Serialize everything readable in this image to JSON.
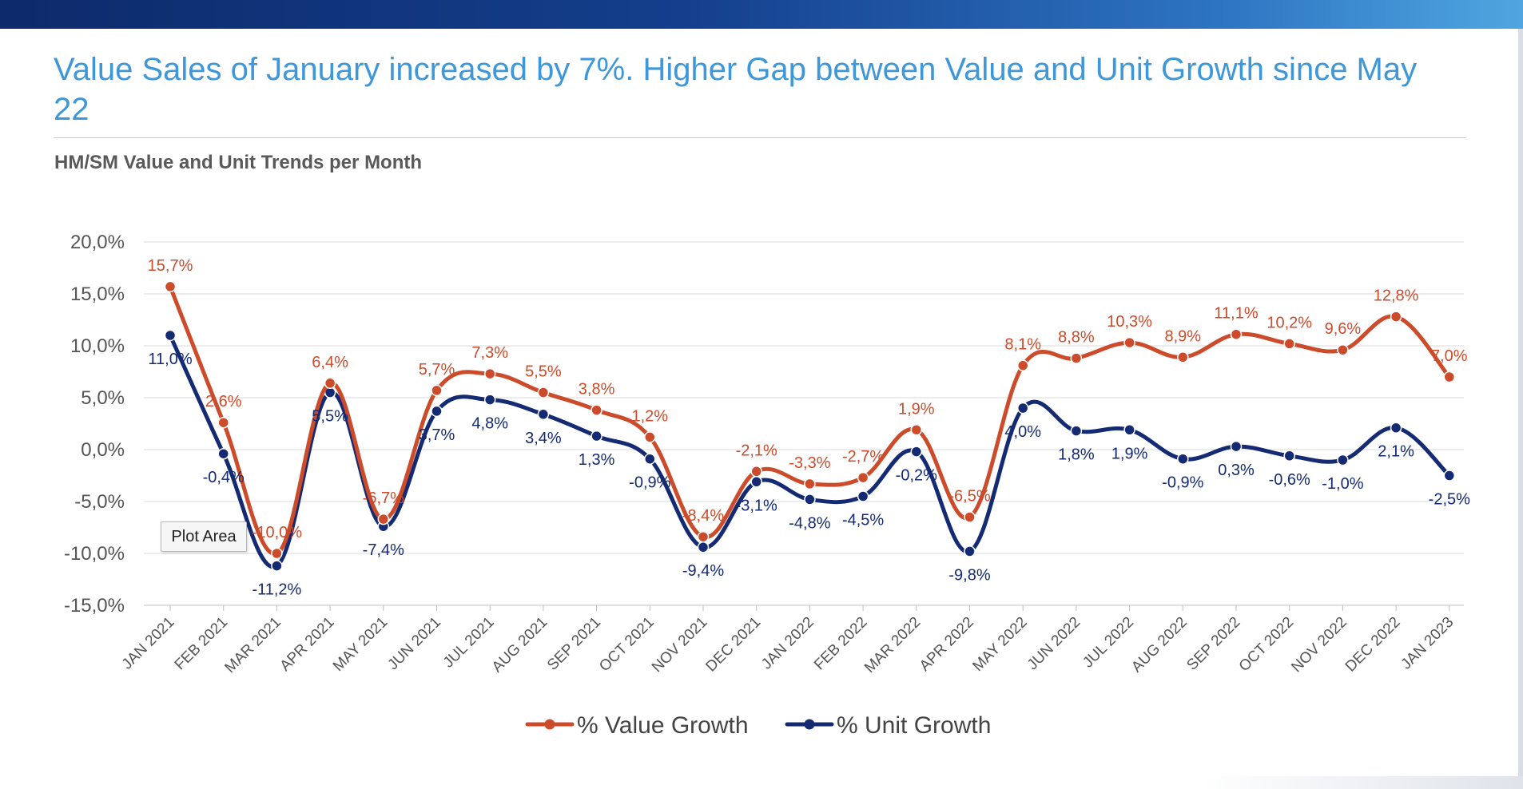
{
  "header": {
    "headline": "Value Sales of January increased by 7%. Higher Gap between Value and Unit Growth since May 22",
    "subtitle": "HM/SM Value and Unit Trends per Month"
  },
  "tooltip": {
    "text": "Plot Area"
  },
  "colors": {
    "value_series": "#cc4b2a",
    "unit_series": "#142a73",
    "headline": "#3d97d8",
    "grid": "#d9d9d9"
  },
  "chart_data": {
    "type": "line",
    "title": "HM/SM Value and Unit Trends per Month",
    "categories": [
      "JAN 2021",
      "FEB 2021",
      "MAR 2021",
      "APR 2021",
      "MAY 2021",
      "JUN 2021",
      "JUL 2021",
      "AUG 2021",
      "SEP 2021",
      "OCT 2021",
      "NOV 2021",
      "DEC 2021",
      "JAN 2022",
      "FEB 2022",
      "MAR 2022",
      "APR 2022",
      "MAY 2022",
      "JUN 2022",
      "JUL 2022",
      "AUG 2022",
      "SEP 2022",
      "OCT 2022",
      "NOV 2022",
      "DEC 2022",
      "JAN 2023"
    ],
    "series": [
      {
        "name": "% Value Growth",
        "color": "#cc4b2a",
        "values": [
          15.7,
          2.6,
          -10.0,
          6.4,
          -6.7,
          5.7,
          7.3,
          5.5,
          3.8,
          1.2,
          -8.4,
          -2.1,
          -3.3,
          -2.7,
          1.9,
          -6.5,
          8.1,
          8.8,
          10.3,
          8.9,
          11.1,
          10.2,
          9.6,
          12.8,
          7.0
        ],
        "labels": [
          "15,7%",
          "2,6%",
          "-10,0%",
          "6,4%",
          "-6,7%",
          "5,7%",
          "7,3%",
          "5,5%",
          "3,8%",
          "1,2%",
          "-8,4%",
          "-2,1%",
          "-3,3%",
          "-2,7%",
          "1,9%",
          "-6,5%",
          "8,1%",
          "8,8%",
          "10,3%",
          "8,9%",
          "11,1%",
          "10,2%",
          "9,6%",
          "12,8%",
          "7,0%"
        ]
      },
      {
        "name": "% Unit Growth",
        "color": "#142a73",
        "values": [
          11.0,
          -0.4,
          -11.2,
          5.5,
          -7.4,
          3.7,
          4.8,
          3.4,
          1.3,
          -0.9,
          -9.4,
          -3.1,
          -4.8,
          -4.5,
          -0.2,
          -9.8,
          4.0,
          1.8,
          1.9,
          -0.9,
          0.3,
          -0.6,
          -1.0,
          2.1,
          -2.5
        ],
        "labels": [
          "11,0%",
          "-0,4%",
          "-11,2%",
          "5,5%",
          "-7,4%",
          "3,7%",
          "4,8%",
          "3,4%",
          "1,3%",
          "-0,9%",
          "-9,4%",
          "-3,1%",
          "-4,8%",
          "-4,5%",
          "-0,2%",
          "-9,8%",
          "4,0%",
          "1,8%",
          "1,9%",
          "-0,9%",
          "0,3%",
          "-0,6%",
          "-1,0%",
          "2,1%",
          "-2,5%"
        ]
      }
    ],
    "ylim": [
      -15,
      20
    ],
    "yticks": [
      20,
      15,
      10,
      5,
      0,
      -5,
      -10,
      -15
    ],
    "ytick_labels": [
      "20,0%",
      "15,0%",
      "10,0%",
      "5,0%",
      "0,0%",
      "-5,0%",
      "-10,0%",
      "-15,0%"
    ],
    "grid": true,
    "legend": "bottom-center",
    "xlabel": "",
    "ylabel": ""
  }
}
